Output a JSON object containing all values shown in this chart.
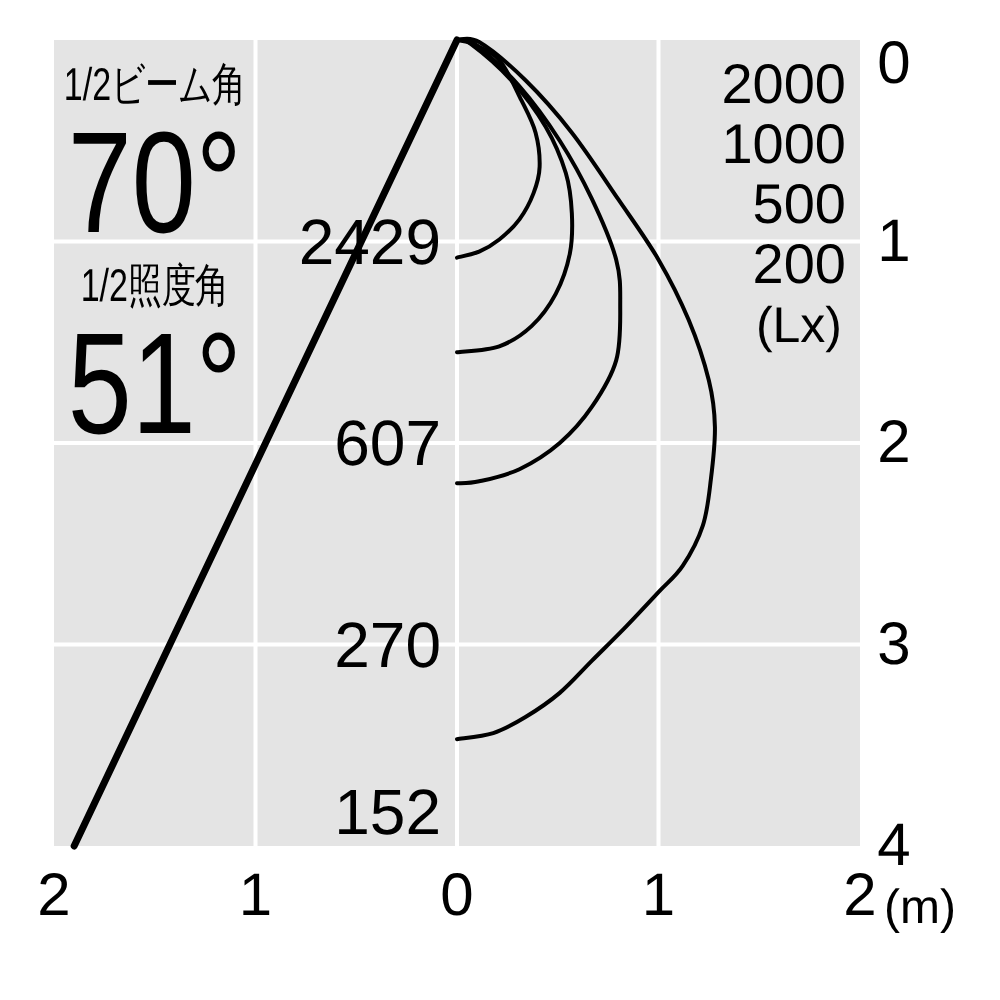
{
  "chart_data": {
    "type": "line",
    "xlabel": "(m)",
    "legend_title": "(Lx)",
    "xlim": [
      -2,
      2
    ],
    "ylim": [
      4,
      0
    ],
    "xticks": [
      {
        "value": -2,
        "label": "2"
      },
      {
        "value": -1,
        "label": "1"
      },
      0,
      1,
      2
    ],
    "yticks": [
      0,
      1,
      2,
      3,
      4
    ],
    "grid": true,
    "legend": "top right",
    "series": [
      {
        "name": "2000",
        "color": "#000000",
        "x": [
          0,
          0.08,
          0.21,
          0.32,
          0.39,
          0.41,
          0.38,
          0.31,
          0.21,
          0.11,
          0
        ],
        "values": [
          0,
          0.02,
          0.1,
          0.3,
          0.46,
          0.63,
          0.76,
          0.89,
          0.99,
          1.05,
          1.08
        ]
      },
      {
        "name": "1000",
        "color": "#000000",
        "x": [
          0,
          0.07,
          0.27,
          0.44,
          0.54,
          0.57,
          0.56,
          0.49,
          0.37,
          0.21,
          0
        ],
        "values": [
          0,
          0.02,
          0.2,
          0.43,
          0.66,
          0.86,
          1.06,
          1.26,
          1.42,
          1.52,
          1.55
        ]
      },
      {
        "name": "500",
        "color": "#000000",
        "x": [
          0,
          0.09,
          0.31,
          0.51,
          0.67,
          0.79,
          0.81,
          0.79,
          0.67,
          0.51,
          0.31,
          0.11,
          0
        ],
        "values": [
          0,
          0.02,
          0.23,
          0.5,
          0.79,
          1.09,
          1.32,
          1.59,
          1.82,
          2.0,
          2.13,
          2.19,
          2.2
        ]
      },
      {
        "name": "200",
        "color": "#000000",
        "x": [
          0,
          0.11,
          0.34,
          0.57,
          0.8,
          1.0,
          1.15,
          1.25,
          1.28,
          1.26,
          1.22,
          1.12,
          1.0,
          0.84,
          0.67,
          0.51,
          0.34,
          0.18,
          0
        ],
        "values": [
          0,
          0.01,
          0.2,
          0.46,
          0.79,
          1.09,
          1.39,
          1.69,
          1.92,
          2.18,
          2.41,
          2.61,
          2.74,
          2.91,
          3.08,
          3.24,
          3.36,
          3.44,
          3.47
        ]
      },
      {
        "color": "#000000",
        "x": [
          0,
          -1.9
        ],
        "values": [
          0,
          4
        ]
      }
    ],
    "annotations": [
      "1/2ビーム角",
      "70°",
      "1/2照度角",
      "51°",
      "2429",
      "607",
      "270",
      "152"
    ]
  }
}
